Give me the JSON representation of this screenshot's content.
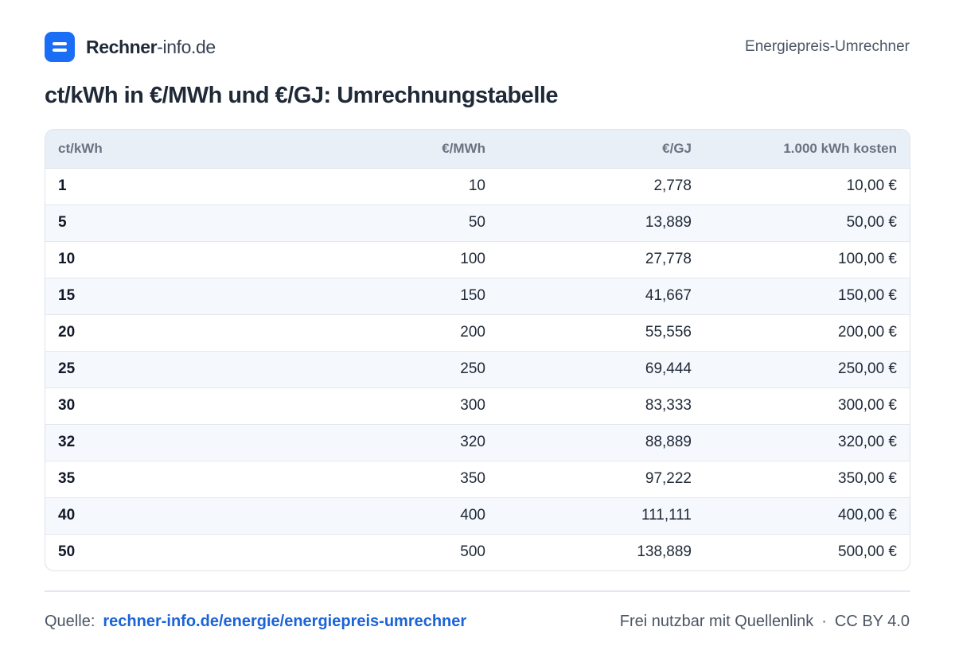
{
  "header": {
    "brand_bold": "Rechner",
    "brand_light": "-info.de",
    "right_label": "Energiepreis-Umrechner"
  },
  "title": "ct/kWh in €/MWh und €/GJ: Umrechnungstabelle",
  "table": {
    "headers": [
      "ct/kWh",
      "€/MWh",
      "€/GJ",
      "1.000 kWh kosten"
    ],
    "rows": [
      [
        "1",
        "10",
        "2,778",
        "10,00 €"
      ],
      [
        "5",
        "50",
        "13,889",
        "50,00 €"
      ],
      [
        "10",
        "100",
        "27,778",
        "100,00 €"
      ],
      [
        "15",
        "150",
        "41,667",
        "150,00 €"
      ],
      [
        "20",
        "200",
        "55,556",
        "200,00 €"
      ],
      [
        "25",
        "250",
        "69,444",
        "250,00 €"
      ],
      [
        "30",
        "300",
        "83,333",
        "300,00 €"
      ],
      [
        "32",
        "320",
        "88,889",
        "320,00 €"
      ],
      [
        "35",
        "350",
        "97,222",
        "350,00 €"
      ],
      [
        "40",
        "400",
        "111,111",
        "400,00 €"
      ],
      [
        "50",
        "500",
        "138,889",
        "500,00 €"
      ]
    ]
  },
  "footer": {
    "source_label": "Quelle:",
    "source_link": "rechner-info.de/energie/energiepreis-umrechner",
    "license_text": "Frei nutzbar mit Quellenlink",
    "separator": "·",
    "license": "CC BY 4.0"
  },
  "colors": {
    "accent": "#1a6ef5",
    "link": "#1a63d8",
    "header_row_bg": "#e9eff7",
    "alt_row_bg": "#f5f8fc"
  },
  "icons": {
    "logo": "equals-logo-icon"
  }
}
